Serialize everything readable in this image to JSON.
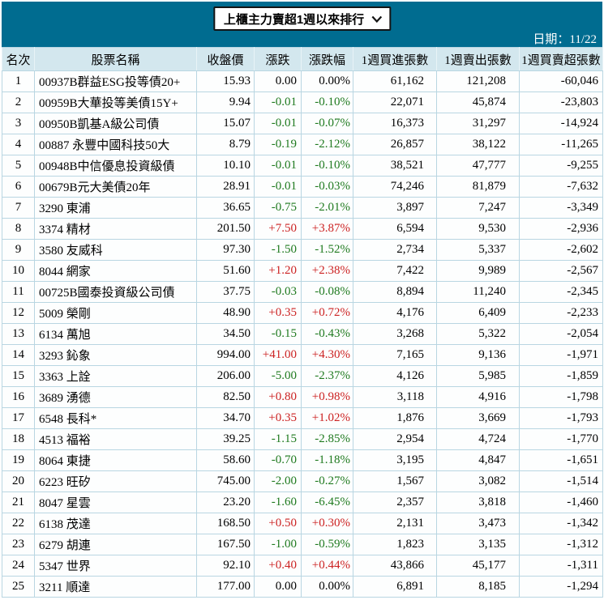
{
  "header": {
    "dropdown_label": "上櫃主力賣超1週以來排行",
    "date_label": "日期：11/22"
  },
  "colors": {
    "banner": "#006C90",
    "header_row_bg": "#d3e7ee",
    "up_red": "#cc2222",
    "down_green": "#1f7a1f"
  },
  "table": {
    "headers": [
      "名次",
      "股票名稱",
      "收盤價",
      "漲跌",
      "漲跌幅",
      "1週買進張數",
      "1週賣出張數",
      "1週買賣超張數"
    ],
    "rows": [
      [
        "1",
        "00937B群益ESG投等債20+",
        "15.93",
        "0.00",
        "0.00%",
        "61,162",
        "121,208",
        "-60,046"
      ],
      [
        "2",
        "00959B大華投等美債15Y+",
        "9.94",
        "-0.01",
        "-0.10%",
        "22,071",
        "45,874",
        "-23,803"
      ],
      [
        "3",
        "00950B凱基A級公司債",
        "15.07",
        "-0.01",
        "-0.07%",
        "16,373",
        "31,297",
        "-14,924"
      ],
      [
        "4",
        "00887 永豐中國科技50大",
        "8.79",
        "-0.19",
        "-2.12%",
        "26,857",
        "38,122",
        "-11,265"
      ],
      [
        "5",
        "00948B中信優息投資級債",
        "10.10",
        "-0.01",
        "-0.10%",
        "38,521",
        "47,777",
        "-9,255"
      ],
      [
        "6",
        "00679B元大美債20年",
        "28.91",
        "-0.01",
        "-0.03%",
        "74,246",
        "81,879",
        "-7,632"
      ],
      [
        "7",
        "3290 東浦",
        "36.65",
        "-0.75",
        "-2.01%",
        "3,897",
        "7,247",
        "-3,349"
      ],
      [
        "8",
        "3374 精材",
        "201.50",
        "+7.50",
        "+3.87%",
        "6,594",
        "9,530",
        "-2,936"
      ],
      [
        "9",
        "3580 友威科",
        "97.30",
        "-1.50",
        "-1.52%",
        "2,734",
        "5,337",
        "-2,602"
      ],
      [
        "10",
        "8044 網家",
        "51.60",
        "+1.20",
        "+2.38%",
        "7,422",
        "9,989",
        "-2,567"
      ],
      [
        "11",
        "00725B國泰投資級公司債",
        "37.75",
        "-0.03",
        "-0.08%",
        "8,894",
        "11,240",
        "-2,345"
      ],
      [
        "12",
        "5009 榮剛",
        "48.90",
        "+0.35",
        "+0.72%",
        "4,176",
        "6,409",
        "-2,233"
      ],
      [
        "13",
        "6134 萬旭",
        "34.50",
        "-0.15",
        "-0.43%",
        "3,268",
        "5,322",
        "-2,054"
      ],
      [
        "14",
        "3293 鈊象",
        "994.00",
        "+41.00",
        "+4.30%",
        "7,165",
        "9,136",
        "-1,971"
      ],
      [
        "15",
        "3363 上詮",
        "206.00",
        "-5.00",
        "-2.37%",
        "4,126",
        "5,985",
        "-1,859"
      ],
      [
        "16",
        "3689 湧德",
        "82.50",
        "+0.80",
        "+0.98%",
        "3,118",
        "4,916",
        "-1,798"
      ],
      [
        "17",
        "6548 長科*",
        "34.70",
        "+0.35",
        "+1.02%",
        "1,876",
        "3,669",
        "-1,793"
      ],
      [
        "18",
        "4513 福裕",
        "39.25",
        "-1.15",
        "-2.85%",
        "2,954",
        "4,724",
        "-1,770"
      ],
      [
        "19",
        "8064 東捷",
        "58.60",
        "-0.70",
        "-1.18%",
        "3,195",
        "4,847",
        "-1,651"
      ],
      [
        "20",
        "6223 旺矽",
        "745.00",
        "-2.00",
        "-0.27%",
        "1,567",
        "3,082",
        "-1,514"
      ],
      [
        "21",
        "8047 星雲",
        "23.20",
        "-1.60",
        "-6.45%",
        "2,357",
        "3,818",
        "-1,460"
      ],
      [
        "22",
        "6138 茂達",
        "168.50",
        "+0.50",
        "+0.30%",
        "2,131",
        "3,473",
        "-1,342"
      ],
      [
        "23",
        "6279 胡連",
        "167.50",
        "-1.00",
        "-0.59%",
        "1,823",
        "3,135",
        "-1,312"
      ],
      [
        "24",
        "5347 世界",
        "92.10",
        "+0.40",
        "+0.44%",
        "43,866",
        "45,177",
        "-1,311"
      ],
      [
        "25",
        "3211 順達",
        "177.00",
        "0.00",
        "0.00%",
        "6,891",
        "8,185",
        "-1,294"
      ]
    ]
  }
}
